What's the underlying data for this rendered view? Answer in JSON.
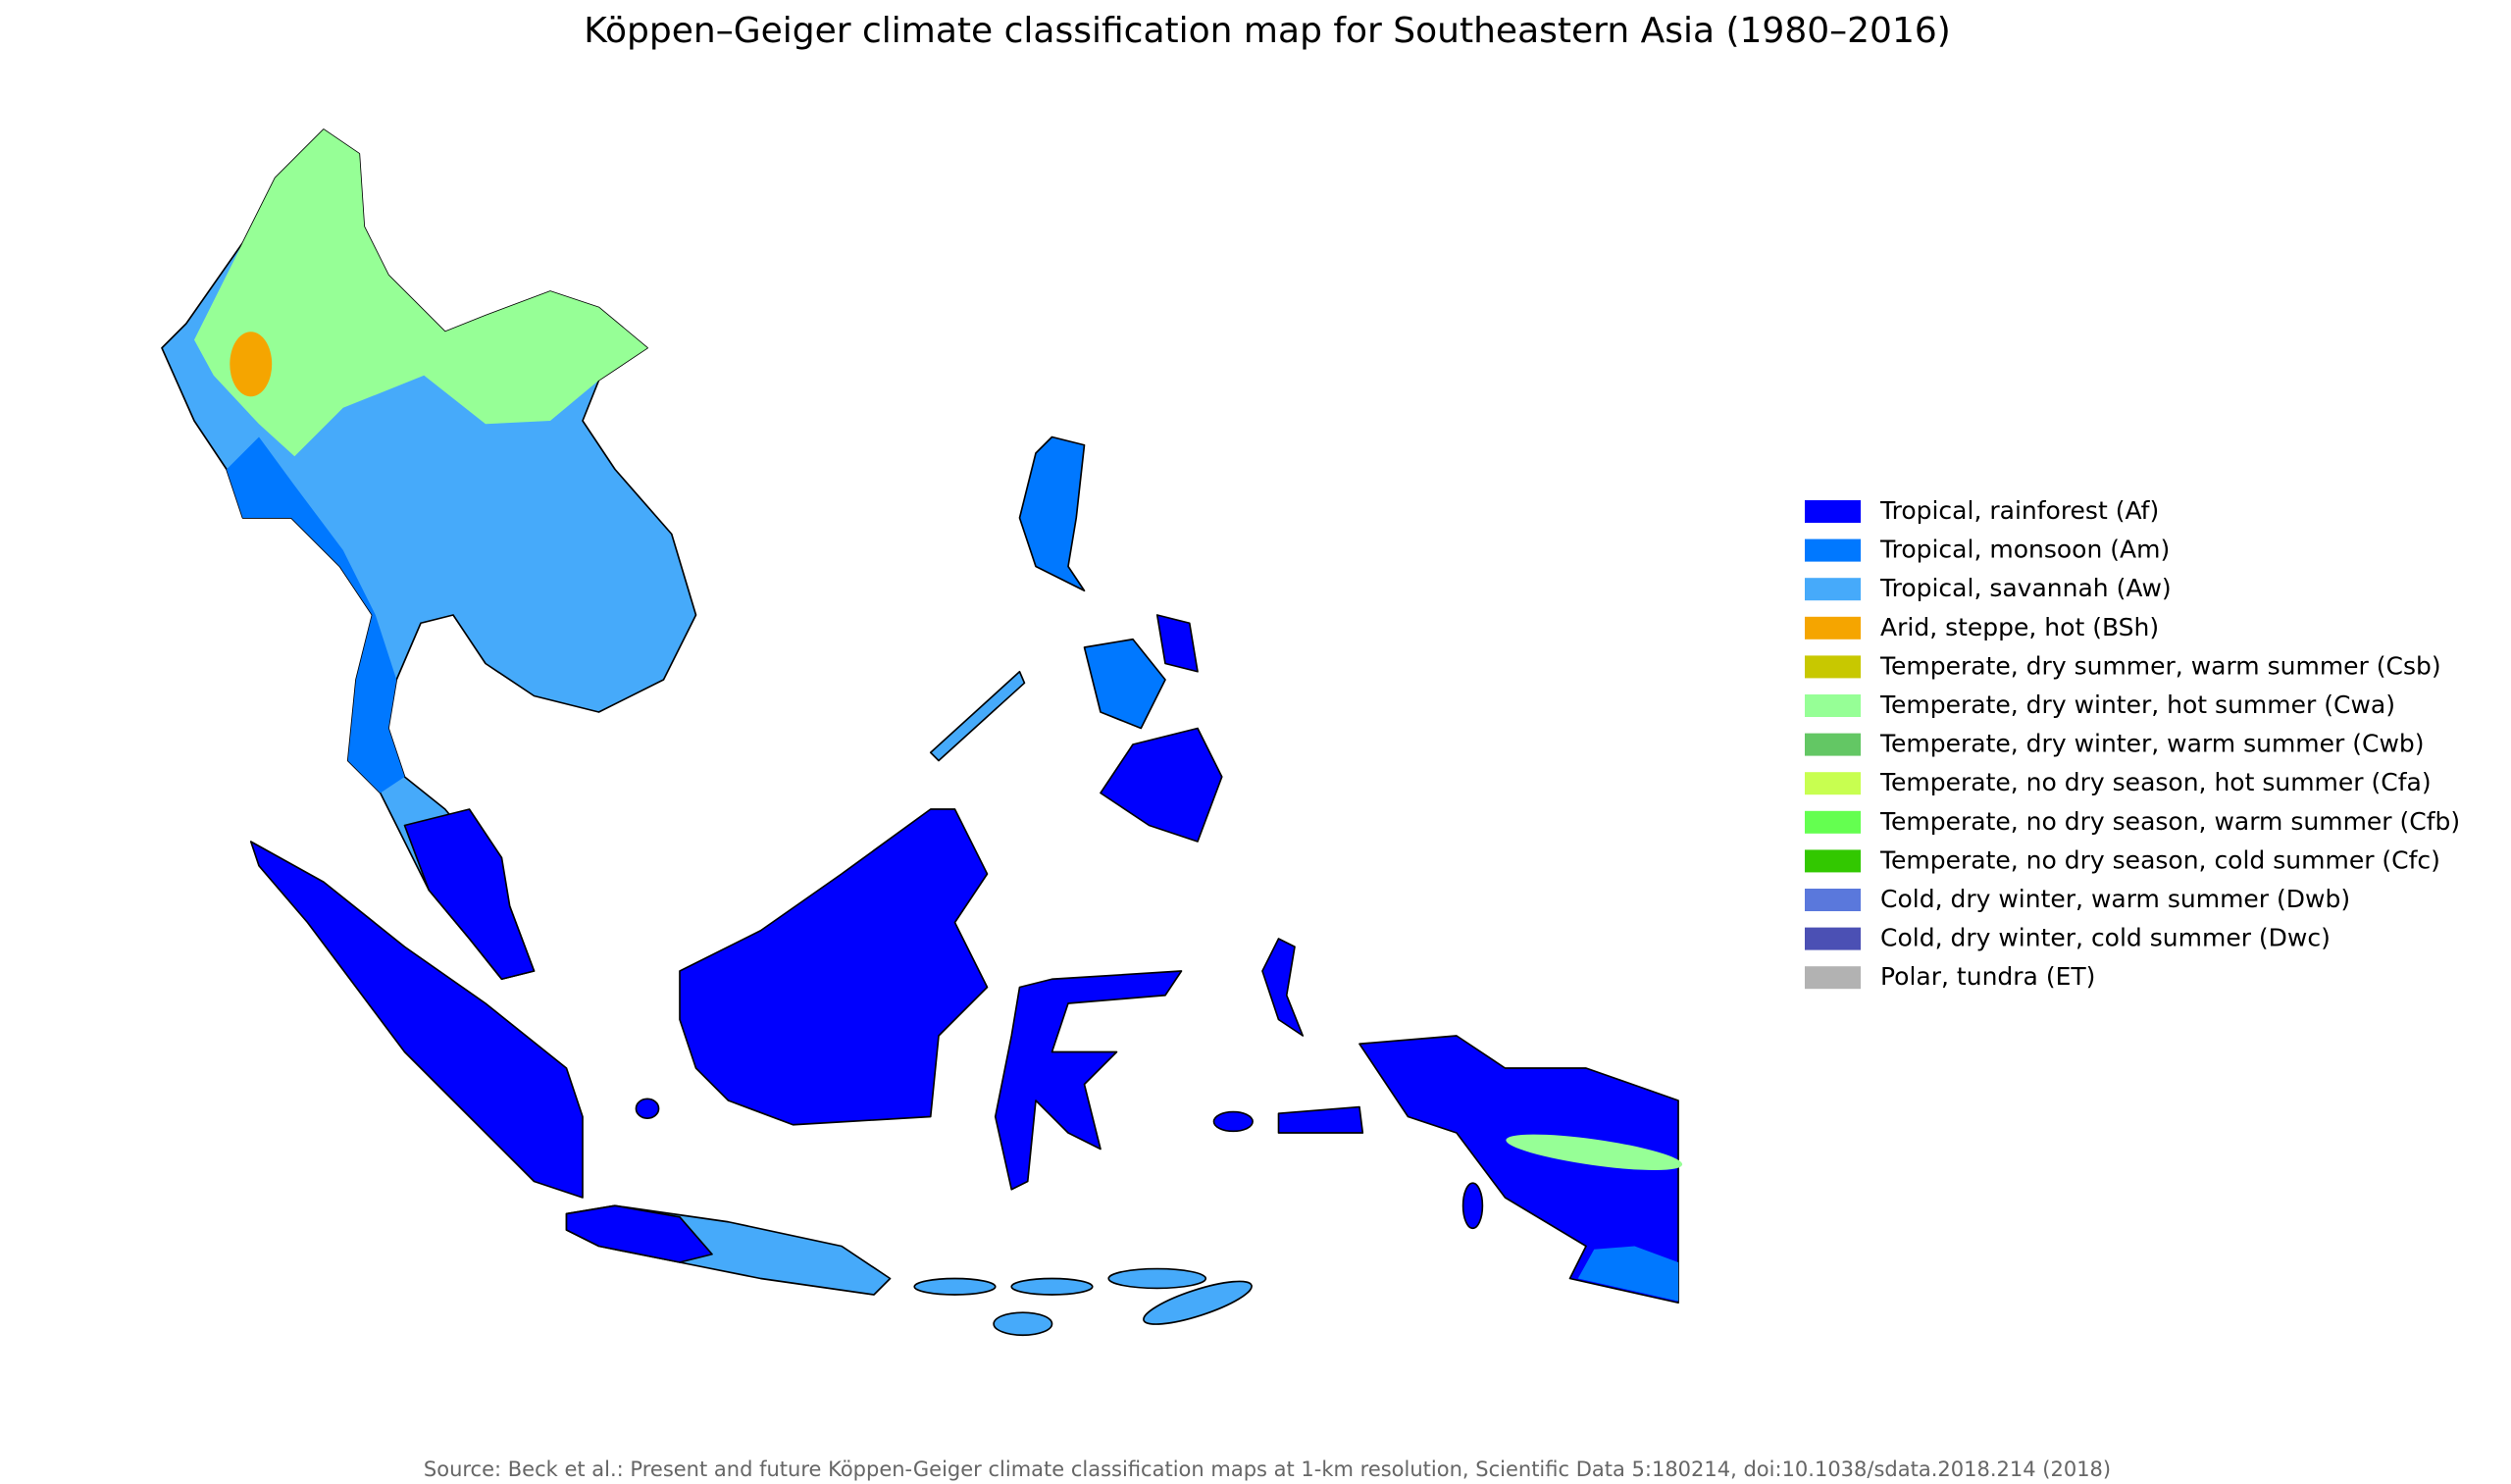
{
  "title": "Köppen–Geiger climate classification map for Southeastern Asia (1980–2016)",
  "legend": [
    {
      "label": "Tropical, rainforest (Af)",
      "color": "#0000fe"
    },
    {
      "label": "Tropical, monsoon (Am)",
      "color": "#0078ff"
    },
    {
      "label": "Tropical, savannah (Aw)",
      "color": "#46aafa"
    },
    {
      "label": "Arid, steppe, hot (BSh)",
      "color": "#f5a500"
    },
    {
      "label": "Temperate, dry summer, warm summer (Csb)",
      "color": "#c8c800"
    },
    {
      "label": "Temperate, dry winter, hot summer (Cwa)",
      "color": "#96ff96"
    },
    {
      "label": "Temperate, dry winter, warm summer (Cwb)",
      "color": "#63c764"
    },
    {
      "label": "Temperate, no dry season, hot summer (Cfa)",
      "color": "#c8ff50"
    },
    {
      "label": "Temperate, no dry season, warm summer (Cfb)",
      "color": "#64ff50"
    },
    {
      "label": "Temperate, no dry season, cold summer (Cfc)",
      "color": "#32c800"
    },
    {
      "label": "Cold, dry winter, warm summer (Dwb)",
      "color": "#5a78dc"
    },
    {
      "label": "Cold, dry winter, cold summer (Dwc)",
      "color": "#4b50b4"
    },
    {
      "label": "Polar, tundra (ET)",
      "color": "#b2b2b2"
    }
  ],
  "source": "Source: Beck et al.: Present and future Köppen-Geiger climate classification maps at 1-km resolution, Scientific Data 5:180214, doi:10.1038/sdata.2018.214 (2018)"
}
